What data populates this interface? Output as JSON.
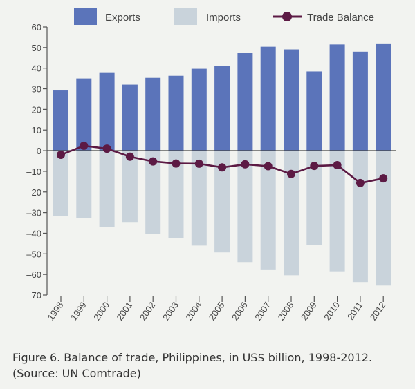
{
  "chart_data": {
    "type": "bar",
    "x": [
      "1998",
      "1999",
      "2000",
      "2001",
      "2002",
      "2003",
      "2004",
      "2005",
      "2006",
      "2007",
      "2008",
      "2009",
      "2010",
      "2011",
      "2012"
    ],
    "series": [
      {
        "name": "Exports",
        "type": "bar",
        "color": "#5b74ba",
        "values": [
          29.5,
          35,
          38,
          32,
          35.3,
          36.3,
          39.7,
          41.2,
          47.4,
          50.4,
          49.1,
          38.4,
          51.5,
          48,
          52
        ]
      },
      {
        "name": "Imports",
        "type": "bar",
        "color": "#c9d3db",
        "values": [
          -31.5,
          -32.6,
          -37,
          -34.9,
          -40.5,
          -42.5,
          -46,
          -49.3,
          -54,
          -57.9,
          -60.4,
          -45.8,
          -58.5,
          -63.7,
          -65.4
        ]
      },
      {
        "name": "Trade Balance",
        "type": "line",
        "color": "#5c1a44",
        "values": [
          -2,
          2.4,
          1,
          -2.9,
          -5.2,
          -6.2,
          -6.3,
          -8.1,
          -6.6,
          -7.5,
          -11.3,
          -7.4,
          -7,
          -15.7,
          -13.4
        ]
      }
    ],
    "ylim": [
      -70,
      60
    ],
    "yticks": [
      "60",
      "50",
      "40",
      "30",
      "20",
      "10",
      "0",
      "-10",
      "-20",
      "-30",
      "-40",
      "-50",
      "-60",
      "-70"
    ],
    "legend_position": "top",
    "grid": false,
    "title": "",
    "xlabel": "",
    "ylabel": ""
  },
  "caption": {
    "line1": "Figure 6. Balance of trade, Philippines, in US$ billion, 1998-2012.",
    "line2": "(Source: UN Comtrade)"
  }
}
